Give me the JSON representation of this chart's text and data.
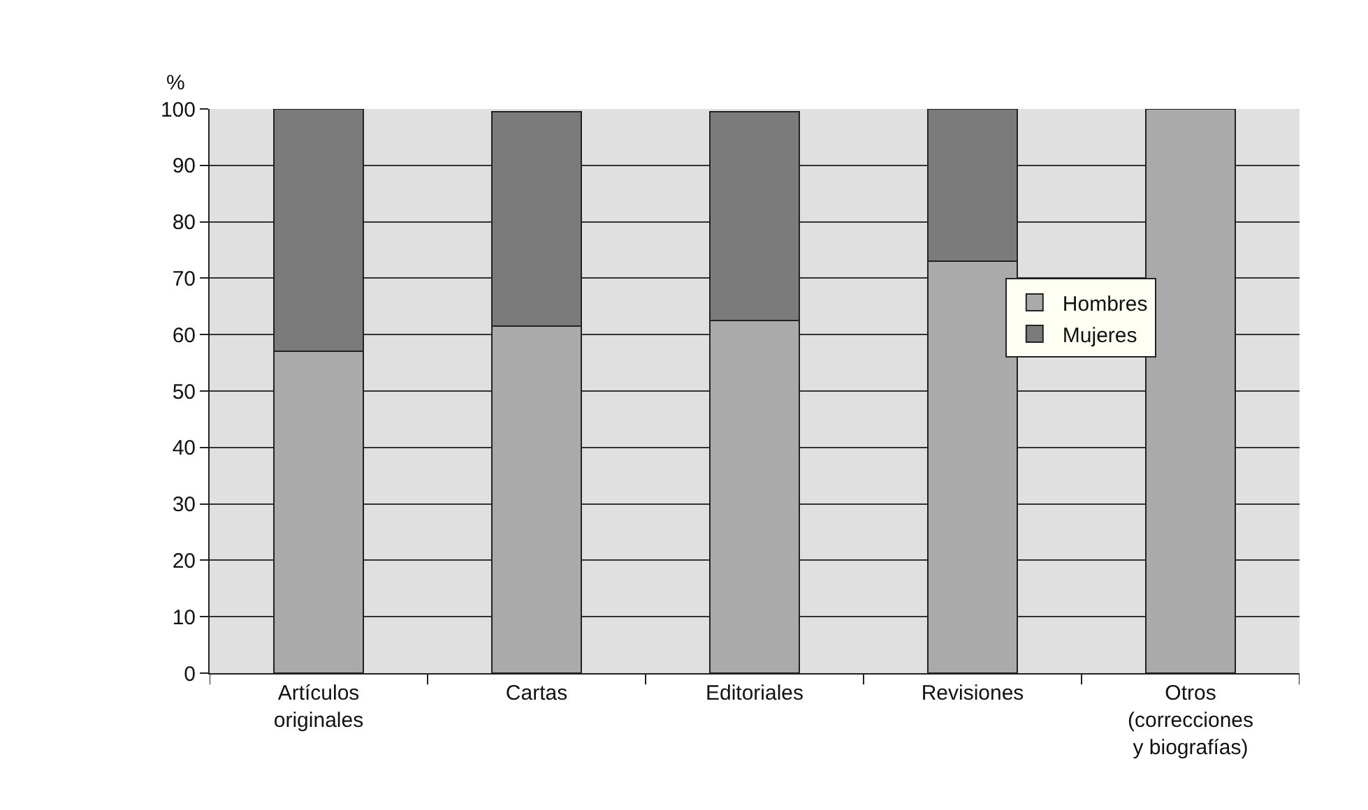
{
  "chart_data": {
    "type": "bar",
    "stacked": true,
    "ylabel": "%",
    "categories": [
      "Artículos\noriginales",
      "Cartas",
      "Editoriales",
      "Revisiones",
      "Otros\n(correcciones\ny biografías)"
    ],
    "series": [
      {
        "name": "Hombres",
        "color": "#aaaaaa",
        "values": [
          57,
          61.5,
          62.5,
          73,
          100
        ]
      },
      {
        "name": "Mujeres",
        "color": "#7b7b7b",
        "values": [
          43,
          38,
          37,
          27,
          0
        ]
      }
    ],
    "ylim": [
      0,
      100
    ],
    "yticks": [
      0,
      10,
      20,
      30,
      40,
      50,
      60,
      70,
      80,
      90,
      100
    ],
    "grid": "y",
    "legend": "right"
  }
}
